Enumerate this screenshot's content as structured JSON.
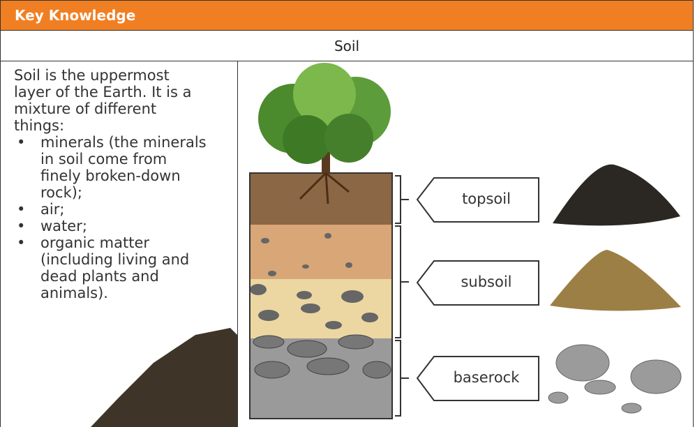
{
  "header": {
    "title": "Key Knowledge"
  },
  "table": {
    "heading": "Soil",
    "intro": "Soil is the uppermost layer of the Earth. It is a mixture of different things:",
    "items": [
      "minerals (the minerals in soil come from finely broken-down rock);",
      "air;",
      "water;",
      "organic matter (including living and dead plants and animals)."
    ],
    "layers": [
      "topsoil",
      "subsoil",
      "baserock"
    ]
  }
}
